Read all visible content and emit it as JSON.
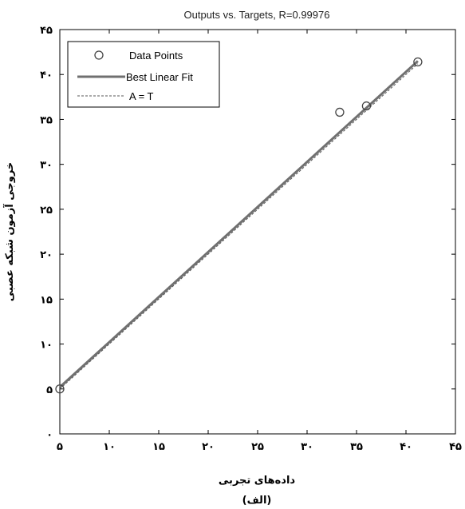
{
  "chart_data": {
    "type": "scatter",
    "title": "Outputs vs. Targets, R=0.99976",
    "xlabel": "داده‌های تجربی",
    "ylabel": "خروجی آزمون شبکه عصبی",
    "caption": "(الف)",
    "xlim": [
      5,
      45
    ],
    "ylim": [
      0,
      45
    ],
    "xticks": [
      5,
      10,
      15,
      20,
      25,
      30,
      35,
      40,
      45
    ],
    "yticks": [
      0,
      5,
      10,
      15,
      20,
      25,
      30,
      35,
      40,
      45
    ],
    "xtick_labels": [
      "۵",
      "۱۰",
      "۱۵",
      "۲۰",
      "۲۵",
      "۳۰",
      "۳۵",
      "۴۰",
      "۴۵"
    ],
    "ytick_labels": [
      "۰",
      "۵",
      "۱۰",
      "۱۵",
      "۲۰",
      "۲۵",
      "۳۰",
      "۳۵",
      "۴۰",
      "۴۵"
    ],
    "series": [
      {
        "name": "Data Points",
        "kind": "markers",
        "x": [
          5.0,
          33.3,
          36.0,
          41.2
        ],
        "y": [
          5.0,
          35.8,
          36.5,
          41.4
        ]
      },
      {
        "name": "Best Linear Fit",
        "kind": "line",
        "x": [
          5,
          41.2
        ],
        "y": [
          5.2,
          41.5
        ]
      },
      {
        "name": "A = T",
        "kind": "dashed-line",
        "x": [
          5,
          41.2
        ],
        "y": [
          5,
          41.2
        ]
      }
    ],
    "legend_position": "top-left",
    "grid": false,
    "colors": {
      "fit_line": "#707070",
      "identity_line": "#555555",
      "markers": "#444444",
      "axes": "#000000"
    }
  }
}
